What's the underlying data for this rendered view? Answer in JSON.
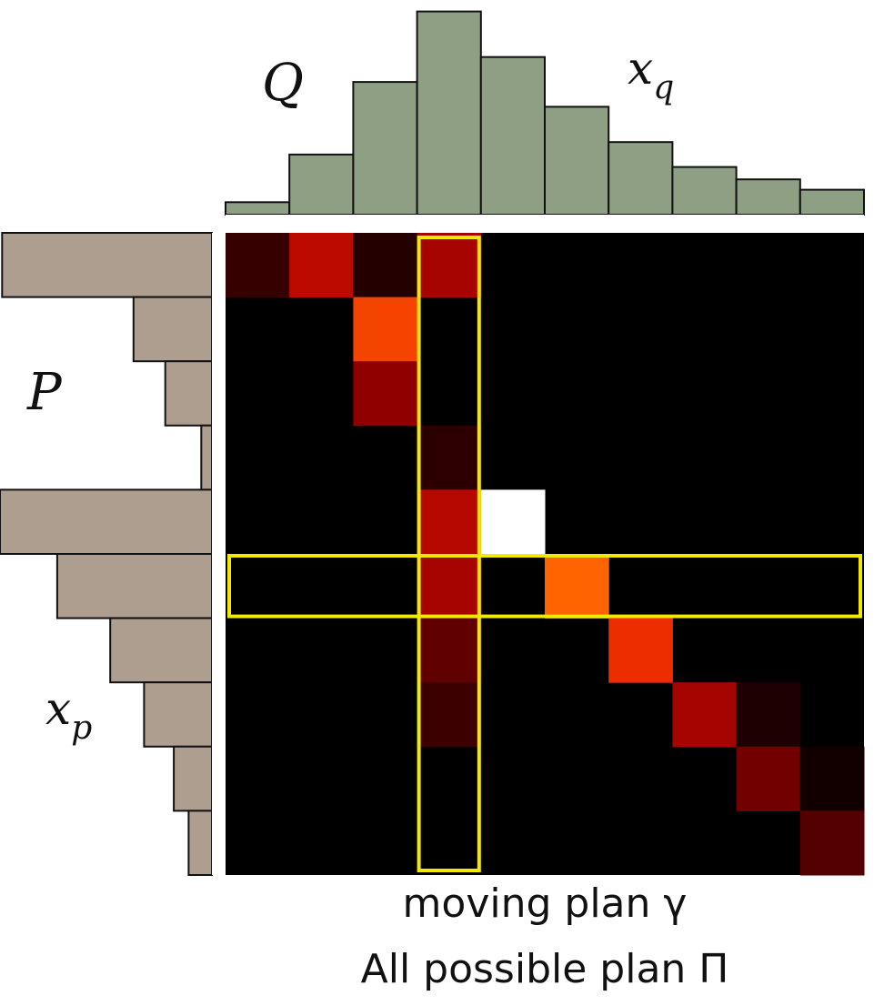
{
  "labels": {
    "top_dist": "Q",
    "top_var_base": "x",
    "top_var_sub": "q",
    "left_dist": "P",
    "left_var_base": "x",
    "left_var_sub": "p"
  },
  "caption": {
    "line1": "moving plan γ",
    "line2": "All possible plan Π"
  },
  "colors": {
    "top_hist": "#8f9f84",
    "left_hist": "#ae9e90",
    "bar_stroke": "#111111",
    "matrix_bg": "#000000",
    "highlight": "#f2e800"
  },
  "chart_data": {
    "type": "heatmap",
    "top_histogram": [
      0.06,
      0.29,
      0.64,
      0.98,
      0.76,
      0.52,
      0.35,
      0.23,
      0.17,
      0.12
    ],
    "left_histogram": [
      0.99,
      0.37,
      0.22,
      0.05,
      1.0,
      0.73,
      0.48,
      0.32,
      0.18,
      0.11
    ],
    "matrix": [
      [
        0.18,
        0.62,
        0.12,
        0.55,
        0,
        0,
        0,
        0,
        0,
        0
      ],
      [
        0,
        0,
        0.85,
        0,
        0,
        0,
        0,
        0,
        0,
        0
      ],
      [
        0,
        0,
        0.48,
        0,
        0,
        0,
        0,
        0,
        0,
        0
      ],
      [
        0,
        0,
        0,
        0.15,
        0,
        0,
        0,
        0,
        0,
        0
      ],
      [
        0,
        0,
        0,
        0.6,
        1.0,
        0,
        0,
        0,
        0,
        0
      ],
      [
        0,
        0,
        0,
        0.55,
        0,
        0.92,
        0,
        0,
        0,
        0
      ],
      [
        0,
        0,
        0,
        0.32,
        0,
        0,
        0.8,
        0,
        0,
        0
      ],
      [
        0,
        0,
        0,
        0.2,
        0,
        0,
        0,
        0.55,
        0.1,
        0
      ],
      [
        0,
        0,
        0,
        0,
        0,
        0,
        0,
        0,
        0.38,
        0.06
      ],
      [
        0,
        0,
        0,
        0,
        0,
        0,
        0,
        0,
        0,
        0.28
      ]
    ],
    "highlighted_column": 3,
    "highlighted_row": 5
  }
}
